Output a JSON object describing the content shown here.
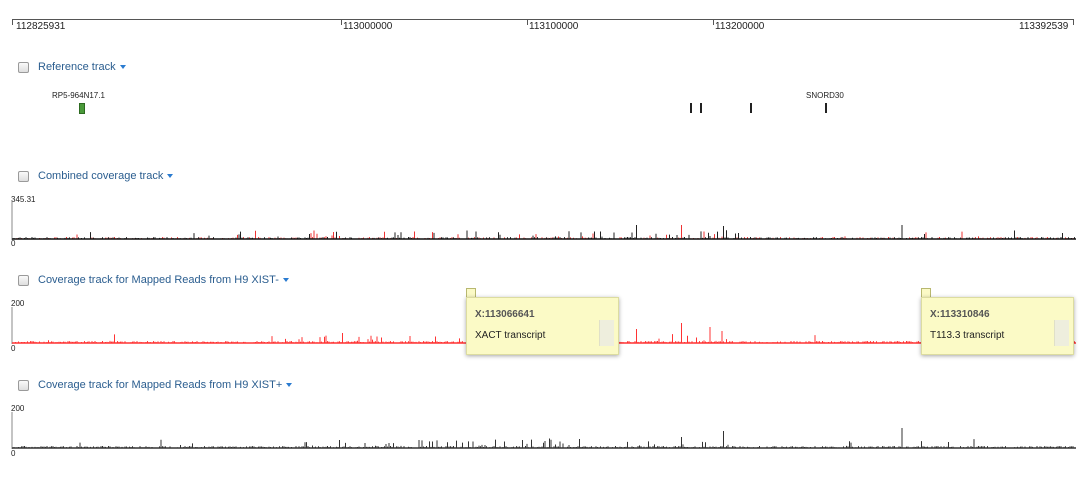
{
  "ruler": {
    "labels": [
      {
        "id": "start",
        "text": "112825931"
      },
      {
        "id": "t1",
        "text": "113000000"
      },
      {
        "id": "t2",
        "text": "113100000"
      },
      {
        "id": "t3",
        "text": "113200000"
      },
      {
        "id": "end",
        "text": "113392539"
      }
    ]
  },
  "tracks": {
    "reference": {
      "title": "Reference track"
    },
    "combined": {
      "title": "Combined coverage track",
      "ymax": "345.31",
      "ymin": "0"
    },
    "xist_minus": {
      "title": "Coverage track for Mapped Reads from H9 XIST-",
      "ymax": "200",
      "ymin": "0"
    },
    "xist_plus": {
      "title": "Coverage track for Mapped Reads from H9 XIST+",
      "ymax": "200",
      "ymin": "0"
    }
  },
  "genes": {
    "rp5": {
      "label": "RP5-964N17.1"
    },
    "snord30": {
      "label": "SNORD30"
    }
  },
  "tooltips": {
    "xact": {
      "position": "X:113066641",
      "description": "XACT transcript"
    },
    "t113": {
      "position": "X:113310846",
      "description": "T113.3 transcript"
    }
  },
  "colors": {
    "link": "#2a5d8f",
    "caret": "#2a7bd0",
    "combined_stroke": "#ee3333",
    "combined_fill": "#222222",
    "minus_stroke": "#ff3333",
    "plus_stroke": "#333333",
    "gene_rp5": "#4a9a3a",
    "tooltip_bg": "#fbfac6"
  },
  "icons": {
    "checkbox": "checkbox-icon",
    "dropdown": "caret-down-icon"
  }
}
